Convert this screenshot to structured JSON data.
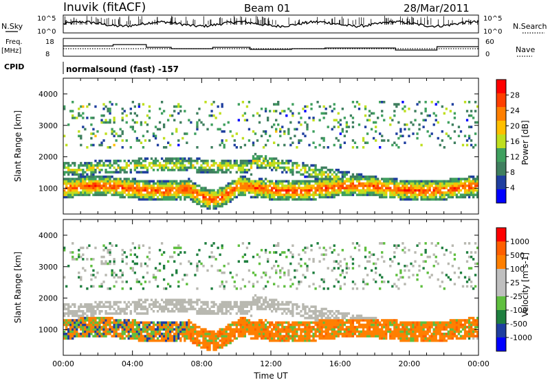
{
  "header": {
    "station": "Inuvik (fitACF)",
    "beam": "Beam 01",
    "date": "28/Mar/2011"
  },
  "top_panels": {
    "nsky_label": "N.Sky",
    "nsky_ticks": [
      "10^5",
      "10^0"
    ],
    "nsearch_label": "N.Search",
    "nsearch_ticks": [
      "10^5",
      "10^0"
    ],
    "freq_label": "Freq.",
    "freq_unit": "[MHz]",
    "freq_ticks": [
      "18",
      "8"
    ],
    "nave_label": "Nave",
    "nave_ticks": [
      "60",
      "0"
    ],
    "cpid_label": "CPID",
    "cpid_text": "normalsound (fast) -157"
  },
  "colors": {
    "power": [
      "#0000ff",
      "#1f3f9f",
      "#3f7f5f",
      "#3fa05f",
      "#bfdf1f",
      "#ffbf00",
      "#ff7f00",
      "#ff3f00",
      "#ff0000"
    ],
    "velocity": [
      "#0000ff",
      "#1f3f9f",
      "#1f7f3f",
      "#5fbf3f",
      "#bfbfbf",
      "#bfbfbf",
      "#ff7f00",
      "#ff5f00",
      "#ff0000"
    ],
    "ground_scatter": "#b8b8b0"
  },
  "chart_data": [
    {
      "type": "heatmap",
      "name": "power",
      "ylabel": "Slant Range [km]",
      "y_ticks": [
        "4000",
        "3000",
        "2000",
        "1000"
      ],
      "ylim": [
        180,
        4500
      ],
      "xlim": [
        0,
        24
      ],
      "colorbar_label": "Power [dB]",
      "colorbar_ticks": [
        "28",
        "24",
        "20",
        "16",
        "12",
        "8",
        "4"
      ],
      "colorbar_range": [
        0,
        32
      ],
      "bands": [
        {
          "range_km": [
            700,
            1300
          ],
          "level": "high"
        },
        {
          "range_km": [
            1300,
            2400
          ],
          "level": "medium"
        },
        {
          "range_km": [
            2400,
            3800
          ],
          "level": "low"
        }
      ]
    },
    {
      "type": "heatmap",
      "name": "velocity",
      "ylabel": "Slant Range [km]",
      "y_ticks": [
        "4000",
        "3000",
        "2000",
        "1000"
      ],
      "ylim": [
        180,
        4500
      ],
      "xlim": [
        0,
        24
      ],
      "colorbar_label": "Velocity [m s-1]",
      "colorbar_ticks": [
        "1000",
        "500",
        "100",
        "25",
        "-25",
        "-100",
        "-500",
        "-1000"
      ],
      "x_ticks": [
        "00:00",
        "04:00",
        "08:00",
        "12:00",
        "16:00",
        "20:00",
        "00:00"
      ],
      "xlabel": "Time UT"
    }
  ]
}
